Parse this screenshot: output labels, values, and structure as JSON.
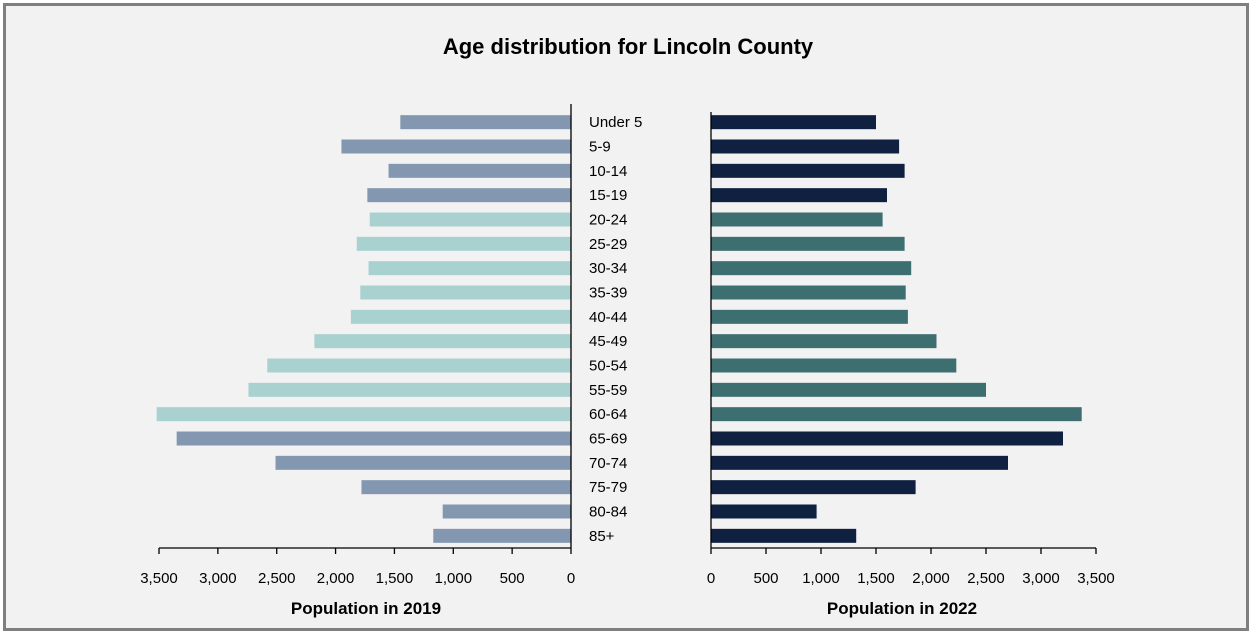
{
  "chart_data": {
    "type": "bar",
    "orientation": "horizontal",
    "title": "Age distribution for Lincoln County",
    "categories": [
      "Under 5",
      "5-9",
      "10-14",
      "15-19",
      "20-24",
      "25-29",
      "30-34",
      "35-39",
      "40-44",
      "45-49",
      "50-54",
      "55-59",
      "60-64",
      "65-69",
      "70-74",
      "75-79",
      "80-84",
      "85+"
    ],
    "left_panel": {
      "xlabel": "Population in 2019",
      "xlim": [
        3500,
        0
      ],
      "xticks": [
        3500,
        3000,
        2500,
        2000,
        1500,
        1000,
        500,
        0
      ],
      "xtick_labels": [
        "3,500",
        "3,000",
        "2,500",
        "2,000",
        "1,500",
        "1,000",
        "500",
        "0"
      ],
      "values": [
        1450,
        1950,
        1550,
        1730,
        1710,
        1820,
        1720,
        1790,
        1870,
        2180,
        2580,
        2740,
        3520,
        3350,
        2510,
        1780,
        1090,
        1170
      ],
      "colors": [
        "#8497b0",
        "#8497b0",
        "#8497b0",
        "#8497b0",
        "#a9d1d0",
        "#a9d1d0",
        "#a9d1d0",
        "#a9d1d0",
        "#a9d1d0",
        "#a9d1d0",
        "#a9d1d0",
        "#a9d1d0",
        "#a9d1d0",
        "#8497b0",
        "#8497b0",
        "#8497b0",
        "#8497b0",
        "#8497b0"
      ]
    },
    "right_panel": {
      "xlabel": "Population in 2022",
      "xlim": [
        0,
        3500
      ],
      "xticks": [
        0,
        500,
        1000,
        1500,
        2000,
        2500,
        3000,
        3500
      ],
      "xtick_labels": [
        "0",
        "500",
        "1,000",
        "1,500",
        "2,000",
        "2,500",
        "3,000",
        "3,500"
      ],
      "values": [
        1500,
        1710,
        1760,
        1600,
        1560,
        1760,
        1820,
        1770,
        1790,
        2050,
        2230,
        2500,
        3370,
        3200,
        2700,
        1860,
        960,
        1320
      ],
      "colors": [
        "#0f2040",
        "#0f2040",
        "#0f2040",
        "#0f2040",
        "#3e6f70",
        "#3e6f70",
        "#3e6f70",
        "#3e6f70",
        "#3e6f70",
        "#3e6f70",
        "#3e6f70",
        "#3e6f70",
        "#3e6f70",
        "#0f2040",
        "#0f2040",
        "#0f2040",
        "#0f2040",
        "#0f2040"
      ]
    },
    "grid": false,
    "legend": "none"
  }
}
